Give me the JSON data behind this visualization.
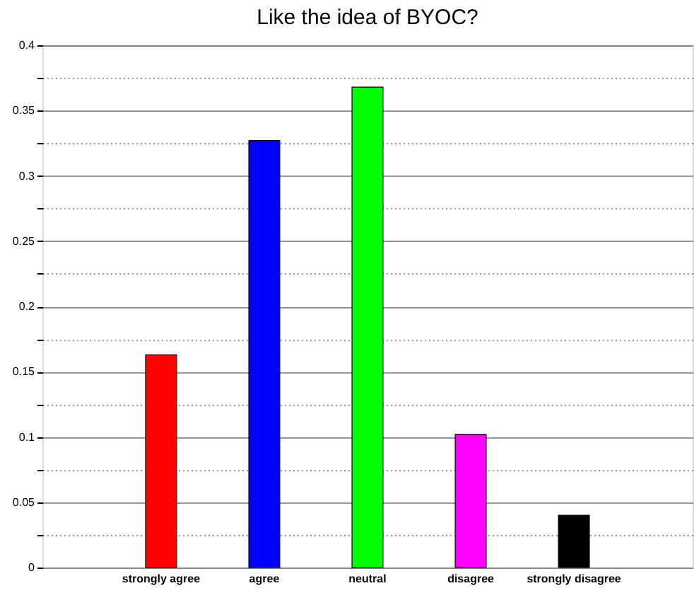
{
  "chart_data": {
    "type": "bar",
    "title": "Like the idea of BYOC?",
    "categories": [
      "strongly agree",
      "agree",
      "neutral",
      "disagree",
      "strongly disagree"
    ],
    "values": [
      0.163,
      0.327,
      0.368,
      0.102,
      0.04
    ],
    "colors": [
      "#ff0000",
      "#0000ff",
      "#00ff00",
      "#ff00ff",
      "#000000"
    ],
    "ylim": [
      0,
      0.4
    ],
    "yticks": [
      0,
      {
        "value": 0.025,
        "label": null
      },
      0.05,
      {
        "value": 0.075,
        "label": null
      },
      0.1,
      {
        "value": 0.125,
        "label": null
      },
      0.15,
      {
        "value": 0.175,
        "label": null
      },
      0.2,
      {
        "value": 0.225,
        "label": null
      },
      0.25,
      {
        "value": 0.275,
        "label": null
      },
      0.3,
      {
        "value": 0.325,
        "label": null
      },
      0.35,
      {
        "value": 0.375,
        "label": null
      },
      0.4
    ],
    "grid": "y",
    "legend": false
  }
}
